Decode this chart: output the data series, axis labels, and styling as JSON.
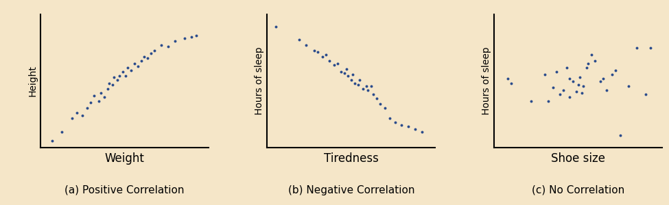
{
  "bg_color": "#f5e6c8",
  "dot_color": "#2b4c8c",
  "dot_size": 8,
  "panels": [
    {
      "xlabel": "Weight",
      "ylabel": "Height",
      "caption": "(a) Positive Correlation",
      "x": [
        0.07,
        0.13,
        0.19,
        0.22,
        0.25,
        0.28,
        0.3,
        0.32,
        0.35,
        0.36,
        0.38,
        0.4,
        0.41,
        0.43,
        0.44,
        0.46,
        0.47,
        0.49,
        0.51,
        0.52,
        0.54,
        0.56,
        0.58,
        0.6,
        0.62,
        0.64,
        0.66,
        0.68,
        0.72,
        0.76,
        0.8,
        0.86,
        0.9,
        0.93
      ],
      "y": [
        0.05,
        0.12,
        0.22,
        0.26,
        0.24,
        0.3,
        0.34,
        0.39,
        0.35,
        0.41,
        0.38,
        0.44,
        0.48,
        0.47,
        0.53,
        0.51,
        0.54,
        0.57,
        0.54,
        0.6,
        0.58,
        0.63,
        0.61,
        0.65,
        0.68,
        0.67,
        0.71,
        0.73,
        0.77,
        0.76,
        0.8,
        0.82,
        0.83,
        0.84
      ]
    },
    {
      "xlabel": "Tiredness",
      "ylabel": "Hours of sleep",
      "caption": "(b) Negative Correlation",
      "x": [
        0.05,
        0.19,
        0.23,
        0.28,
        0.3,
        0.33,
        0.35,
        0.37,
        0.4,
        0.42,
        0.44,
        0.46,
        0.47,
        0.48,
        0.5,
        0.51,
        0.52,
        0.54,
        0.55,
        0.57,
        0.59,
        0.6,
        0.62,
        0.63,
        0.65,
        0.67,
        0.7,
        0.73,
        0.76,
        0.8,
        0.84,
        0.88,
        0.92
      ],
      "y": [
        0.91,
        0.81,
        0.77,
        0.73,
        0.72,
        0.68,
        0.7,
        0.65,
        0.62,
        0.63,
        0.57,
        0.56,
        0.59,
        0.54,
        0.51,
        0.55,
        0.48,
        0.47,
        0.51,
        0.44,
        0.46,
        0.43,
        0.46,
        0.4,
        0.37,
        0.33,
        0.3,
        0.22,
        0.19,
        0.17,
        0.16,
        0.14,
        0.12
      ]
    },
    {
      "xlabel": "Shoe size",
      "ylabel": "Hours of sleep",
      "caption": "(c) No Correlation",
      "x": [
        0.08,
        0.1,
        0.22,
        0.3,
        0.32,
        0.35,
        0.37,
        0.39,
        0.41,
        0.43,
        0.45,
        0.45,
        0.47,
        0.49,
        0.5,
        0.51,
        0.52,
        0.53,
        0.55,
        0.56,
        0.58,
        0.6,
        0.63,
        0.65,
        0.67,
        0.7,
        0.72,
        0.75,
        0.8,
        0.85,
        0.9,
        0.93
      ],
      "y": [
        0.52,
        0.48,
        0.35,
        0.55,
        0.35,
        0.45,
        0.57,
        0.4,
        0.43,
        0.6,
        0.52,
        0.38,
        0.5,
        0.42,
        0.47,
        0.53,
        0.41,
        0.46,
        0.6,
        0.63,
        0.7,
        0.65,
        0.5,
        0.52,
        0.43,
        0.55,
        0.58,
        0.09,
        0.46,
        0.75,
        0.4,
        0.75
      ]
    }
  ],
  "xlabel_fontsize": 12,
  "ylabel_fontsize": 10,
  "caption_fontsize": 11
}
